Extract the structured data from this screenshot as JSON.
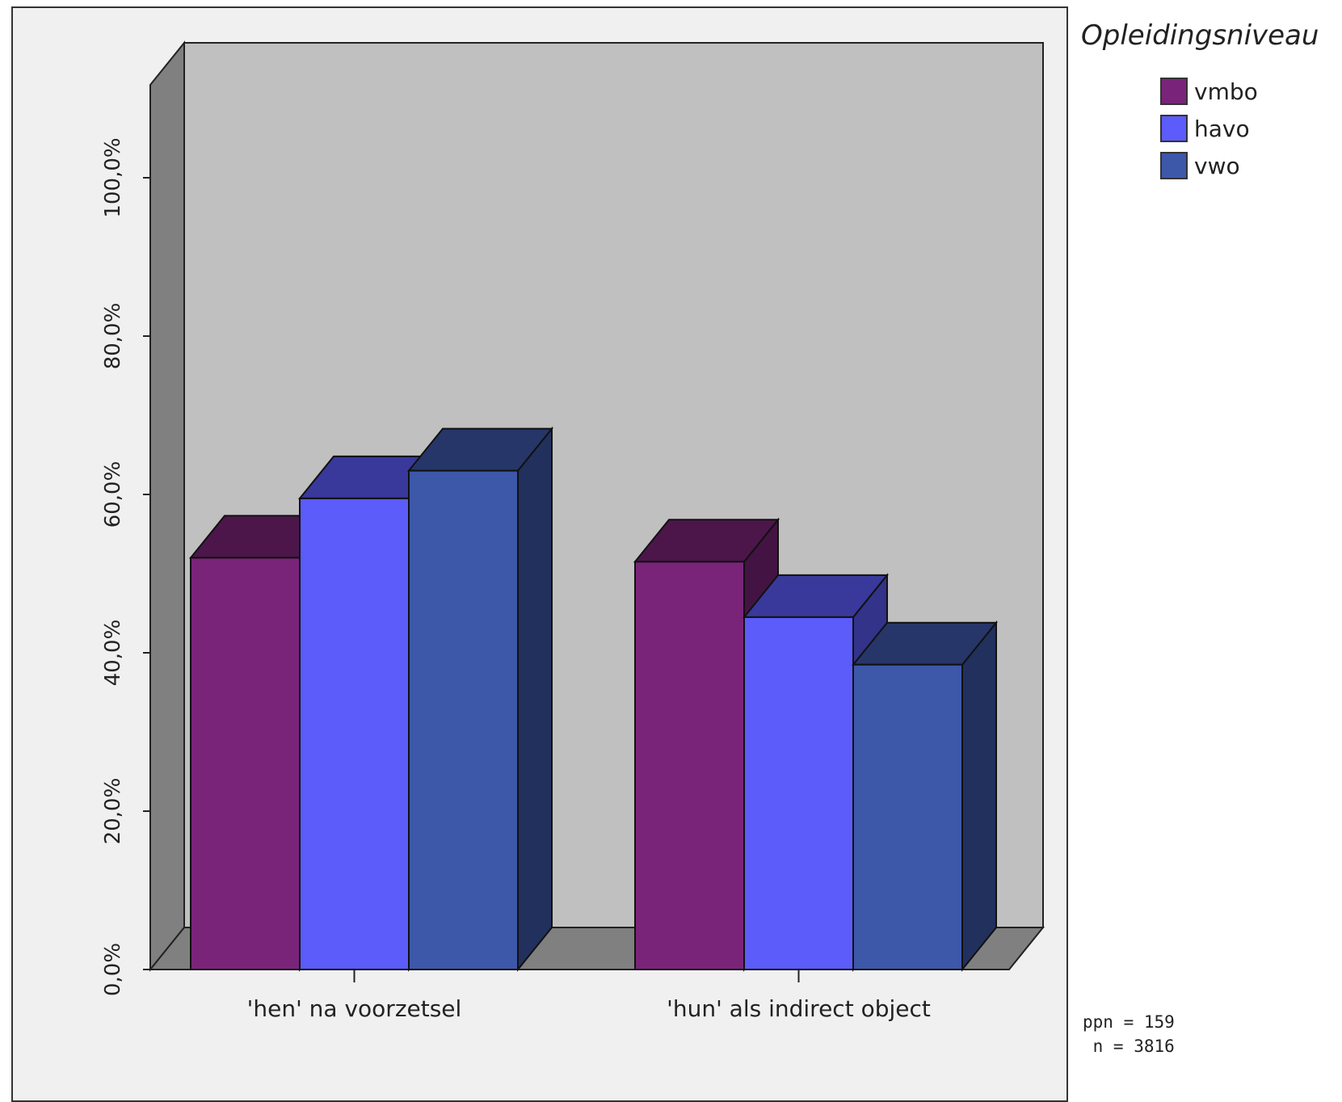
{
  "chart_data": {
    "type": "bar",
    "categories": [
      "'hen' na voorzetsel",
      "'hun' als indirect object"
    ],
    "series": [
      {
        "name": "vmbo",
        "values": [
          52.0,
          51.5
        ],
        "color": "#7a2479"
      },
      {
        "name": "havo",
        "values": [
          59.5,
          44.5
        ],
        "color": "#5b5cf9"
      },
      {
        "name": "vwo",
        "values": [
          63.0,
          38.5
        ],
        "color": "#3d57a9"
      }
    ],
    "ylim": [
      0,
      110
    ],
    "yticks": [
      "0,0%",
      "20,0%",
      "40,0%",
      "60,0%",
      "80,0%",
      "100,0%"
    ],
    "legend": {
      "title": "Opleidingsniveau",
      "placement": "top-right"
    },
    "three_d": true,
    "grid": false
  },
  "footnote": {
    "ppn": "ppn = 159",
    "n": " n = 3816"
  }
}
